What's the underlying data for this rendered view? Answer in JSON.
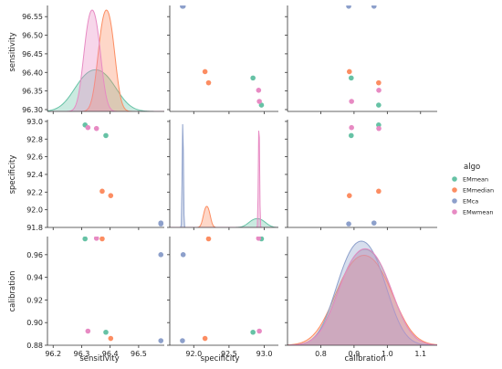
{
  "chart_data": {
    "type": "scatter",
    "kind": "pairplot",
    "variables": [
      "sensitivity",
      "specificity",
      "calibration"
    ],
    "diagonal": "kde",
    "grid": false,
    "legend": {
      "title": "algo",
      "placement": "right",
      "entries": [
        "EMmean",
        "EMmedian",
        "EMca",
        "EMwmean"
      ]
    },
    "colors": {
      "EMmean": "#66c2a5",
      "EMmedian": "#fc8d62",
      "EMca": "#8da0cb",
      "EMwmean": "#e78ac3"
    },
    "axes": {
      "sensitivity": {
        "label": "sensitivity",
        "range": [
          96.18,
          96.59
        ],
        "ticks": [
          96.2,
          96.3,
          96.4,
          96.5
        ],
        "tick_labels": [
          "96.2",
          "96.3",
          "96.4",
          "96.5"
        ]
      },
      "specificity": {
        "label": "specificity",
        "range": [
          91.8,
          93.02
        ],
        "ticks": [
          91.8,
          92.0,
          92.2,
          92.4,
          92.6,
          92.8,
          93.0
        ],
        "tick_labels": [
          "91.8",
          "92.0",
          "92.2",
          "92.4",
          "92.6",
          "92.8",
          "93.0"
        ],
        "x_range": [
          91.66,
          93.2
        ],
        "x_ticks": [
          92.0,
          92.5,
          93.0
        ],
        "x_tick_labels": [
          "92.0",
          "92.5",
          "93.0"
        ]
      },
      "calibration": {
        "label": "calibration",
        "range": [
          0.88,
          0.976
        ],
        "ticks": [
          0.88,
          0.9,
          0.92,
          0.94,
          0.96
        ],
        "tick_labels": [
          "0.88",
          "0.90",
          "0.92",
          "0.94",
          "0.96"
        ],
        "x_range": [
          0.7,
          1.15
        ],
        "x_ticks": [
          0.8,
          0.9,
          1.0,
          1.1
        ],
        "x_tick_labels": [
          "0.8",
          "0.9",
          "1.0",
          "1.1"
        ]
      },
      "sensitivity_y": {
        "range": [
          96.295,
          96.58
        ],
        "ticks": [
          96.3,
          96.35,
          96.4,
          96.45,
          96.5,
          96.55
        ],
        "tick_labels": [
          "96.30",
          "96.35",
          "96.40",
          "96.45",
          "96.50",
          "96.55"
        ]
      }
    },
    "series": [
      {
        "name": "EMmean",
        "points": [
          {
            "sensitivity": 96.385,
            "specificity": 92.84,
            "calibration": 0.8915
          },
          {
            "sensitivity": 96.312,
            "specificity": 92.96,
            "calibration": 0.974
          }
        ]
      },
      {
        "name": "EMmedian",
        "points": [
          {
            "sensitivity": 96.402,
            "specificity": 92.16,
            "calibration": 0.886
          },
          {
            "sensitivity": 96.372,
            "specificity": 92.21,
            "calibration": 0.974
          }
        ]
      },
      {
        "name": "EMca",
        "points": [
          {
            "sensitivity": 96.578,
            "specificity": 91.84,
            "calibration": 0.884
          },
          {
            "sensitivity": 96.578,
            "specificity": 91.85,
            "calibration": 0.96
          }
        ]
      },
      {
        "name": "EMwmean",
        "points": [
          {
            "sensitivity": 96.322,
            "specificity": 92.93,
            "calibration": 0.8925
          },
          {
            "sensitivity": 96.352,
            "specificity": 92.92,
            "calibration": 0.9745
          }
        ]
      }
    ]
  }
}
